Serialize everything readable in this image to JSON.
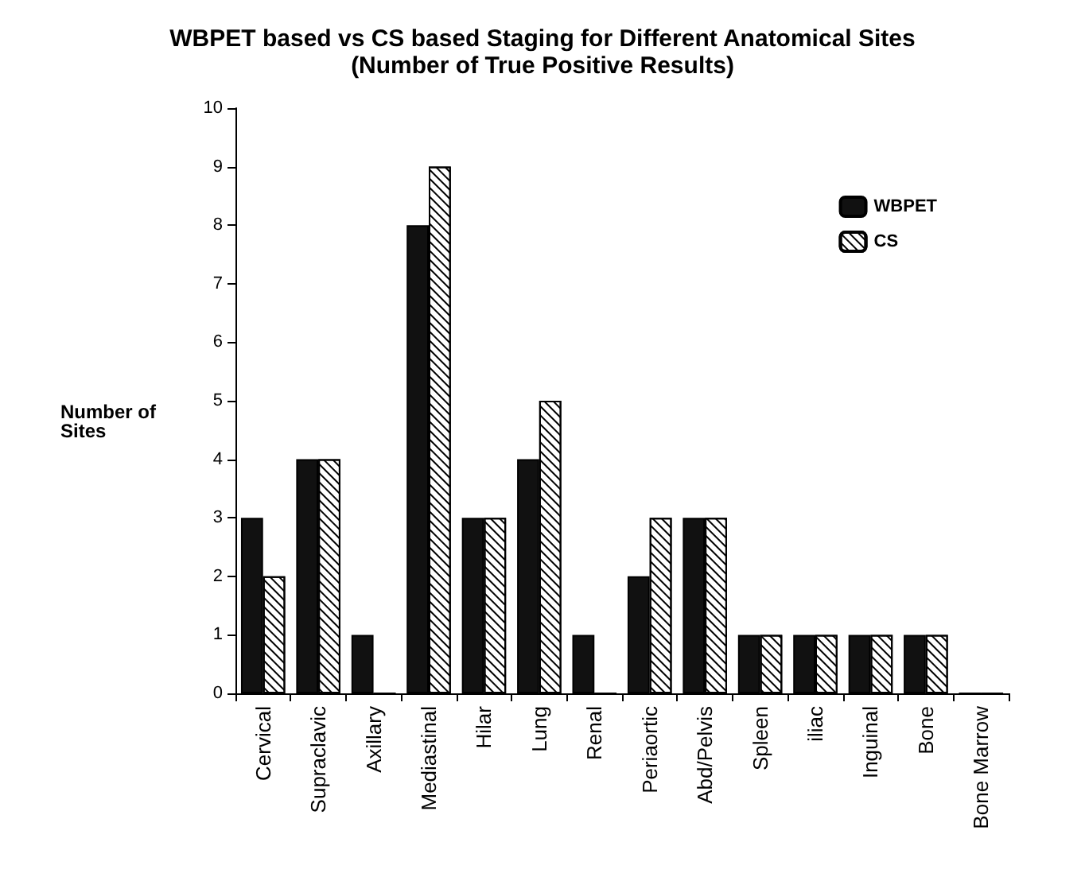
{
  "chart_data": {
    "type": "bar",
    "title": "WBPET based vs CS based Staging for Different Anatomical Sites",
    "subtitle": "(Number of True Positive Results)",
    "ylabel": "Number of Sites",
    "categories": [
      "Cervical",
      "Supraclavic",
      "Axillary",
      "Mediastinal",
      "Hilar",
      "Lung",
      "Renal",
      "Periaortic",
      "Abd/Pelvis",
      "Spleen",
      "iliac",
      "Inguinal",
      "Bone",
      "Bone Marrow"
    ],
    "series": [
      {
        "name": "WBPET",
        "color": "#111111",
        "values": [
          3,
          4,
          1,
          8,
          3,
          4,
          1,
          2,
          3,
          1,
          1,
          1,
          1,
          0
        ]
      },
      {
        "name": "CS",
        "color": "#ffffff",
        "values": [
          2,
          4,
          0,
          9,
          3,
          5,
          0,
          3,
          3,
          1,
          1,
          1,
          1,
          0
        ]
      }
    ],
    "ylim": [
      0,
      10
    ],
    "yticks": [
      0,
      1,
      2,
      3,
      4,
      5,
      6,
      7,
      8,
      9,
      10
    ],
    "grid": false,
    "legend": "top right"
  }
}
